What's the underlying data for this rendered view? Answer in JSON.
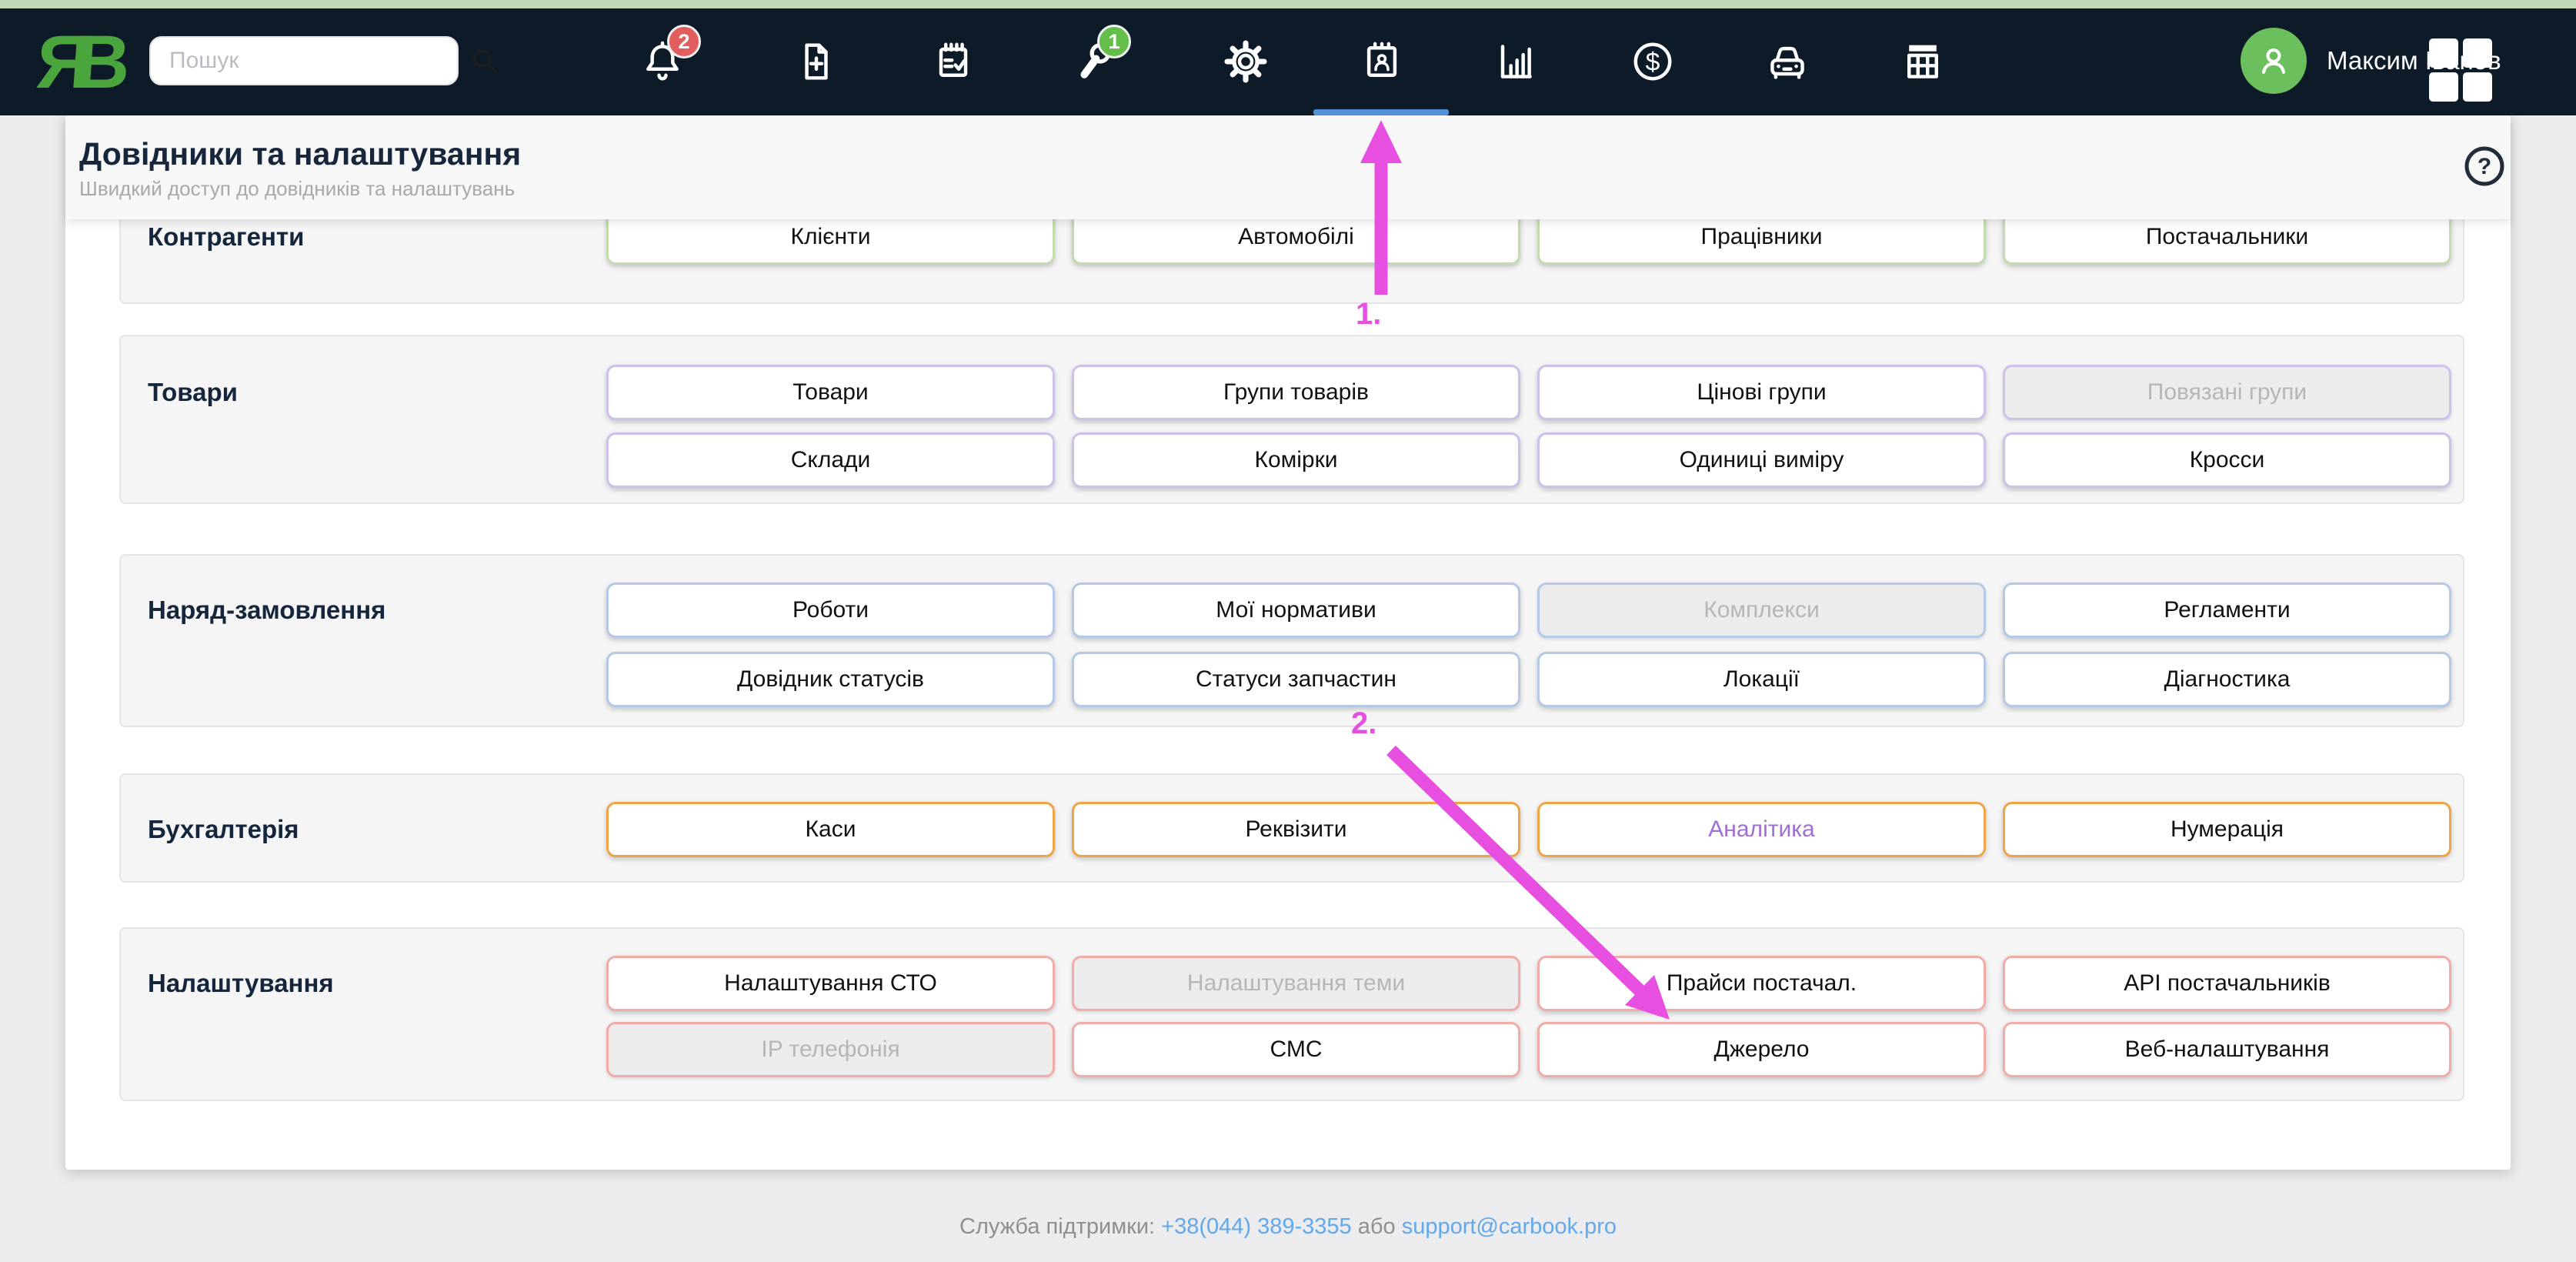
{
  "topbar": {
    "logo_text": "ЯВ",
    "search": {
      "placeholder": "Пошук"
    },
    "nav_items": [
      {
        "icon": "bell-icon",
        "badge": "2"
      },
      {
        "icon": "file-plus-icon"
      },
      {
        "icon": "calendar-check-icon"
      },
      {
        "icon": "wrench-icon",
        "badge": "1"
      },
      {
        "icon": "gear-icon"
      },
      {
        "icon": "calendar-person-icon",
        "selected": true
      },
      {
        "icon": "bar-chart-icon"
      },
      {
        "icon": "dollar-icon"
      },
      {
        "icon": "car-icon"
      },
      {
        "icon": "table-icon"
      }
    ],
    "user": {
      "name": "Максим Іванов"
    }
  },
  "page_header": {
    "title": "Довідники та налаштування",
    "subtitle": "Швидкий доступ до довідників та налаштувань"
  },
  "sections": [
    {
      "title": "Контрагенти",
      "accent": "#c3dcae",
      "rows": [
        [
          {
            "label": "Клієнти",
            "state": "normal"
          },
          {
            "label": "Автомобілі",
            "state": "normal"
          },
          {
            "label": "Працівники",
            "state": "normal"
          },
          {
            "label": "Постачальники",
            "state": "normal"
          }
        ]
      ]
    },
    {
      "title": "Товари",
      "accent": "#cec0ea",
      "rows": [
        [
          {
            "label": "Товари",
            "state": "normal"
          },
          {
            "label": "Групи товарів",
            "state": "normal"
          },
          {
            "label": "Цінові групи",
            "state": "normal"
          },
          {
            "label": "Повязані групи",
            "state": "disabled"
          }
        ],
        [
          {
            "label": "Склади",
            "state": "normal"
          },
          {
            "label": "Комірки",
            "state": "normal"
          },
          {
            "label": "Одиниці виміру",
            "state": "normal"
          },
          {
            "label": "Кросси",
            "state": "normal"
          }
        ]
      ]
    },
    {
      "title": "Наряд-замовлення",
      "accent": "#b5c8e8",
      "rows": [
        [
          {
            "label": "Роботи",
            "state": "normal"
          },
          {
            "label": "Мої нормативи",
            "state": "normal"
          },
          {
            "label": "Комплекси",
            "state": "disabled"
          },
          {
            "label": "Регламенти",
            "state": "normal"
          }
        ],
        [
          {
            "label": "Довідник статусів",
            "state": "normal"
          },
          {
            "label": "Статуси запчастин",
            "state": "normal"
          },
          {
            "label": "Локації",
            "state": "normal"
          },
          {
            "label": "Діагностика",
            "state": "normal"
          }
        ]
      ]
    },
    {
      "title": "Бухгалтерія",
      "accent": "#f0a445",
      "rows": [
        [
          {
            "label": "Каси",
            "state": "normal"
          },
          {
            "label": "Реквізити",
            "state": "normal"
          },
          {
            "label": "Аналітика",
            "state": "accent-text"
          },
          {
            "label": "Нумерація",
            "state": "normal"
          }
        ]
      ]
    },
    {
      "title": "Налаштування",
      "accent": "#f1aca7",
      "rows": [
        [
          {
            "label": "Налаштування СТО",
            "state": "normal"
          },
          {
            "label": "Налаштування теми",
            "state": "disabled"
          },
          {
            "label": "Прайси постачал.",
            "state": "normal"
          },
          {
            "label": "API постачальників",
            "state": "normal"
          }
        ],
        [
          {
            "label": "IP телефонія",
            "state": "disabled"
          },
          {
            "label": "СМС",
            "state": "normal"
          },
          {
            "label": "Джерело",
            "state": "normal"
          },
          {
            "label": "Веб-налаштування",
            "state": "normal"
          }
        ]
      ]
    }
  ],
  "annotations": [
    {
      "label": "1."
    },
    {
      "label": "2."
    }
  ],
  "footer": {
    "support_prefix": "Служба підтримки:",
    "phone": "+38(044) 389-3355",
    "conjunction": "або",
    "email": "support@carbook.pro"
  },
  "colors": {
    "navbar_bg": "#0d1b29",
    "top_strip": "#bfd8b8",
    "logo_green": "#4aa63c",
    "selected_tab_underline": "#5391d6",
    "badge_red": "#e25d5d",
    "badge_green": "#63bf4a",
    "avatar_green": "#6cbf5d",
    "annotation_magenta": "#e74fe0",
    "link_blue": "#62a8ea",
    "disabled_bg": "#ececec",
    "analytics_text": "#a06fd6"
  }
}
